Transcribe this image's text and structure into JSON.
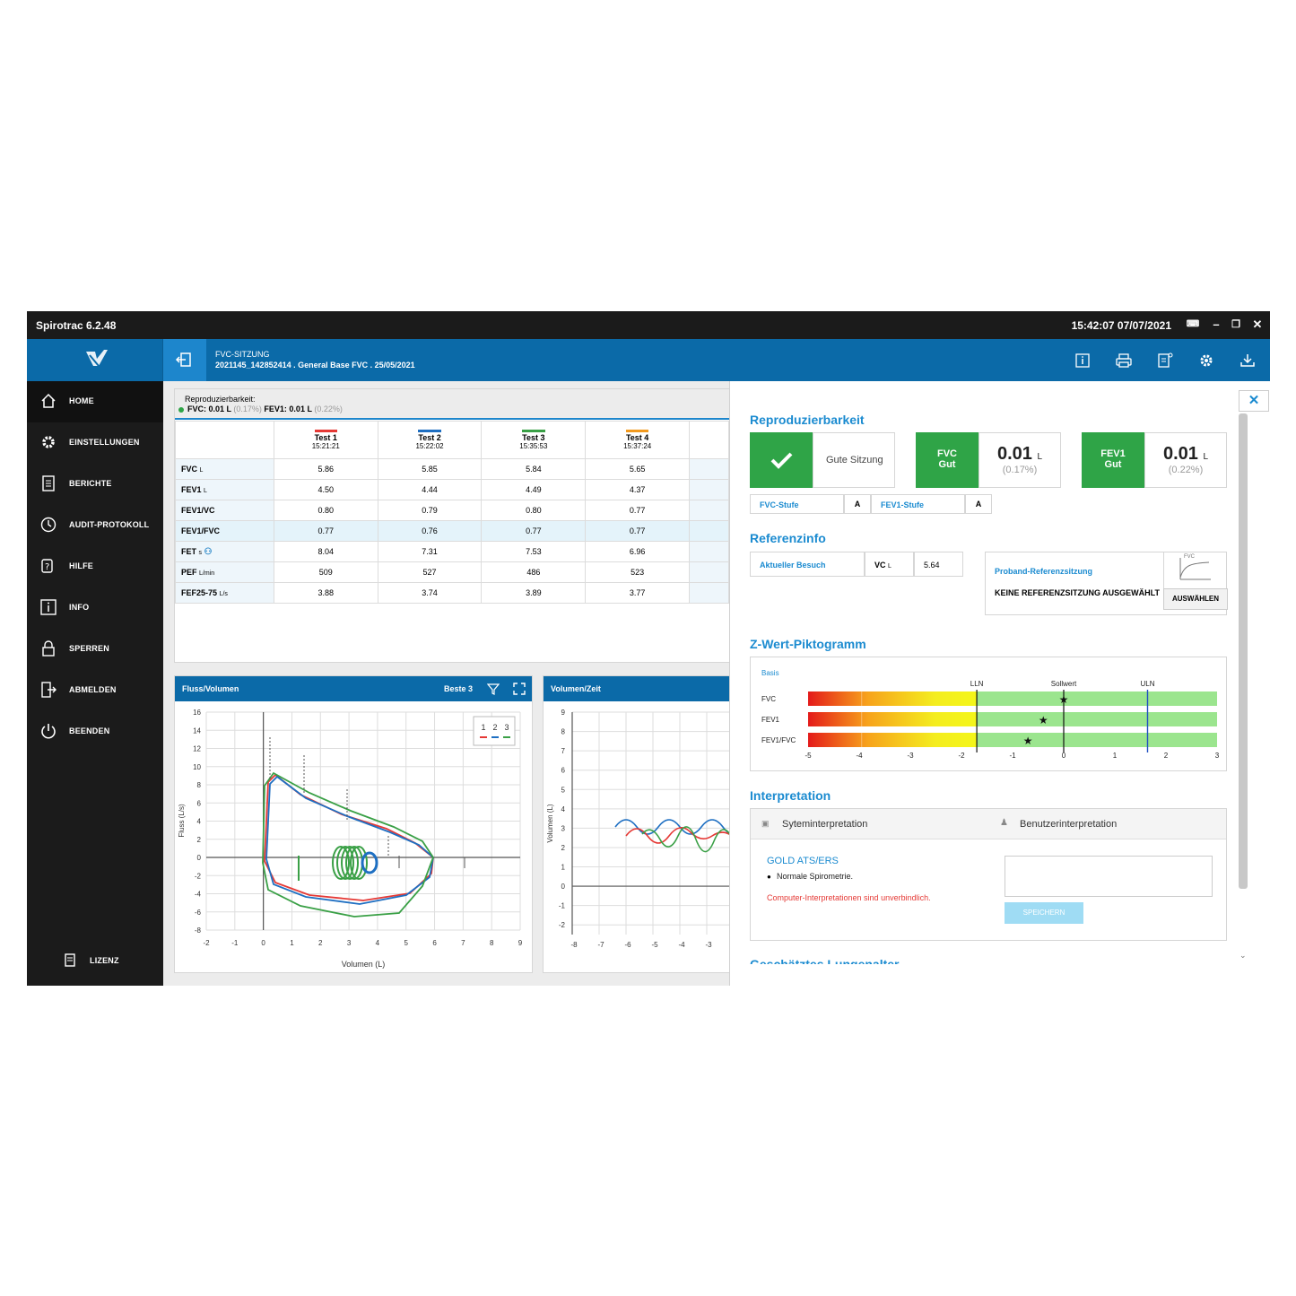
{
  "app": {
    "title": "Spirotrac 6.2.48",
    "clock": "15:42:07  07/07/2021"
  },
  "header": {
    "line1": "FVC-SITZUNG",
    "line2": "2021145_142852414  .  General Base FVC  .  25/05/2021"
  },
  "sidebar": {
    "items": [
      {
        "label": "HOME"
      },
      {
        "label": "EINSTELLUNGEN"
      },
      {
        "label": "BERICHTE"
      },
      {
        "label": "AUDIT-PROTOKOLL"
      },
      {
        "label": "HILFE"
      },
      {
        "label": "INFO"
      },
      {
        "label": "SPERREN"
      },
      {
        "label": "ABMELDEN"
      },
      {
        "label": "BEENDEN"
      }
    ],
    "license": "LIZENZ"
  },
  "repro": {
    "title": "Reproduzierbarkeit:",
    "fvc": "FVC: 0.01",
    "fvc_unit": "L",
    "fvc_pct": "(0.17%)",
    "fev1": "FEV1: 0.01",
    "fev1_unit": "L",
    "fev1_pct": "(0.22%)"
  },
  "table": {
    "tests": [
      {
        "name": "Test 1",
        "time": "15:21:21",
        "color": "#e53935"
      },
      {
        "name": "Test 2",
        "time": "15:22:02",
        "color": "#1e6fc2"
      },
      {
        "name": "Test 3",
        "time": "15:35:53",
        "color": "#3aa046"
      },
      {
        "name": "Test 4",
        "time": "15:37:24",
        "color": "#f29a1f"
      }
    ],
    "rows": [
      {
        "label": "FVC",
        "unit": "L",
        "values": [
          "5.86",
          "5.85",
          "5.84",
          "5.65"
        ]
      },
      {
        "label": "FEV1",
        "unit": "L",
        "values": [
          "4.50",
          "4.44",
          "4.49",
          "4.37"
        ]
      },
      {
        "label": "FEV1/VC",
        "unit": "",
        "values": [
          "0.80",
          "0.79",
          "0.80",
          "0.77"
        ]
      },
      {
        "label": "FEV1/FVC",
        "unit": "",
        "values": [
          "0.77",
          "0.76",
          "0.77",
          "0.77"
        ]
      },
      {
        "label": "FET",
        "unit": "s",
        "values": [
          "8.04",
          "7.31",
          "7.53",
          "6.96"
        ]
      },
      {
        "label": "PEF",
        "unit": "L/min",
        "values": [
          "509",
          "527",
          "486",
          "523"
        ]
      },
      {
        "label": "FEF25-75",
        "unit": "L/s",
        "values": [
          "3.88",
          "3.74",
          "3.89",
          "3.77"
        ]
      }
    ]
  },
  "flow_chart": {
    "title": "Fluss/Volumen",
    "best": "Beste 3",
    "legend": [
      "1",
      "2",
      "3"
    ],
    "xlabel": "Volumen (L)",
    "ylabel": "Fluss (L/s)",
    "xticks": [
      "-2",
      "-1",
      "0",
      "1",
      "2",
      "3",
      "4",
      "5",
      "6",
      "7",
      "8",
      "9"
    ],
    "yticks": [
      "16",
      "14",
      "12",
      "10",
      "8",
      "6",
      "4",
      "2",
      "0",
      "-2",
      "-4",
      "-6",
      "-8"
    ]
  },
  "vol_chart": {
    "title": "Volumen/Zeit",
    "ylabel": "Volumen (L)",
    "xticks": [
      "-8",
      "-7",
      "-6",
      "-5",
      "-4",
      "-3"
    ],
    "yticks": [
      "9",
      "8",
      "7",
      "6",
      "5",
      "4",
      "3",
      "2",
      "1",
      "0",
      "-1",
      "-2"
    ]
  },
  "right": {
    "repro_title": "Reproduzierbarkeit",
    "session": "Gute Sitzung",
    "fvc_label": "FVC",
    "fvc_status": "Gut",
    "fvc_value": "0.01",
    "fvc_unit": "L",
    "fvc_pct": "(0.17%)",
    "fev1_label": "FEV1",
    "fev1_status": "Gut",
    "fev1_value": "0.01",
    "fev1_unit": "L",
    "fev1_pct": "(0.22%)",
    "fvc_grade_label": "FVC-Stufe",
    "fvc_grade": "A",
    "fev1_grade_label": "FEV1-Stufe",
    "fev1_grade": "A",
    "ref_title": "Referenzinfo",
    "visit": "Aktueller Besuch",
    "vc_label": "VC",
    "vc_unit": "L",
    "vc_value": "5.64",
    "proband_title": "Proband-Referenzsitzung",
    "proband_none": "KEINE REFERENZSITZUNG AUSGEWÄHLT",
    "select_btn": "AUSWÄHLEN",
    "thumb_label": "FVC",
    "z_title": "Z-Wert-Piktogramm",
    "z_basis": "Basis",
    "z_lln": "LLN",
    "z_soll": "Sollwert",
    "z_uln": "ULN",
    "z_rows": [
      {
        "label": "FVC",
        "z": 0.0
      },
      {
        "label": "FEV1",
        "z": -0.4
      },
      {
        "label": "FEV1/FVC",
        "z": -0.7
      }
    ],
    "z_ticks": [
      "-5",
      "-4",
      "-3",
      "-2",
      "-1",
      "0",
      "1",
      "2",
      "3"
    ],
    "interp_title": "Interpretation",
    "sys_tab": "Syteminterpretation",
    "user_tab": "Benutzerinterpretation",
    "gold": "GOLD ATS/ERS",
    "normal": "Normale Spirometrie.",
    "warning": "Computer-Interpretationen sind unverbindlich.",
    "save_btn": "SPEICHERN",
    "next_title": "Geschätztes Lungenalter"
  },
  "colors": {
    "accent": "#0b6aa8",
    "green": "#2fa447",
    "heading": "#1b8bd0",
    "warning": "#e53935"
  }
}
